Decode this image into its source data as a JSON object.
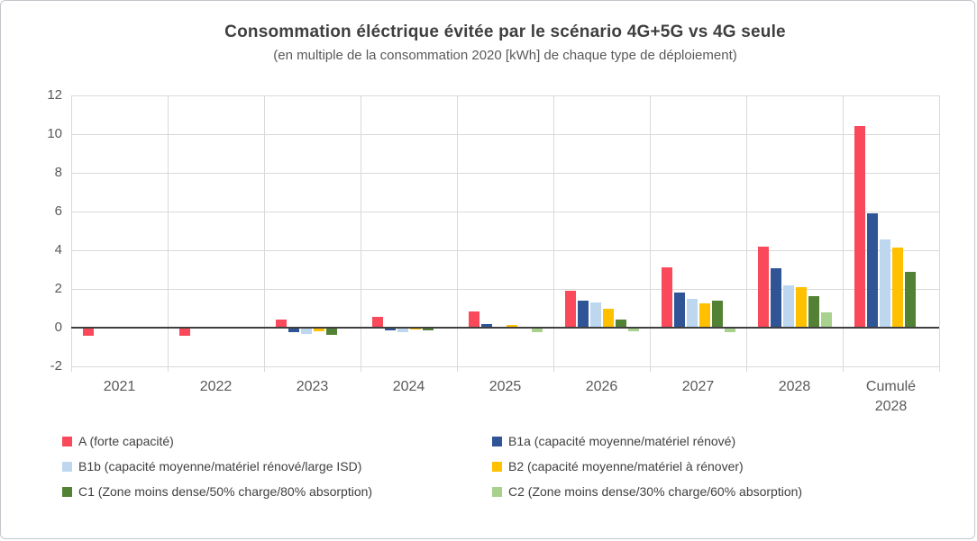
{
  "chart_data": {
    "type": "bar",
    "title": "Consommation éléctrique évitée par le scénario 4G+5G vs 4G seule",
    "subtitle": "(en multiple de la consommation 2020 [kWh] de chaque type de déploiement)",
    "categories": [
      "2021",
      "2022",
      "2023",
      "2024",
      "2025",
      "2026",
      "2027",
      "2028",
      "Cumulé\n2028"
    ],
    "series": [
      {
        "name": "A (forte capacité)",
        "short": "A",
        "color": "#F9495A",
        "values": [
          -0.4,
          -0.4,
          0.4,
          0.55,
          0.85,
          1.9,
          3.1,
          4.2,
          10.4
        ]
      },
      {
        "name": "B1a (capacité moyenne/matériel rénové)",
        "short": "B1a",
        "color": "#2F5597",
        "values": [
          0,
          0,
          -0.25,
          -0.15,
          0.2,
          1.4,
          1.8,
          3.05,
          5.9
        ]
      },
      {
        "name": "B1b (capacité moyenne/matériel rénové/large ISD)",
        "short": "B1b",
        "color": "#BDD7EE",
        "values": [
          0,
          0,
          -0.3,
          -0.25,
          0.05,
          1.3,
          1.5,
          2.2,
          4.55
        ]
      },
      {
        "name": "B2 (capacité moyenne/matériel à rénover)",
        "short": "B2",
        "color": "#FFC000",
        "values": [
          0,
          0,
          -0.2,
          -0.1,
          0.15,
          1.0,
          1.25,
          2.1,
          4.15
        ]
      },
      {
        "name": "C1 (Zone moins dense/50% charge/80% absorption)",
        "short": "C1",
        "color": "#548235",
        "values": [
          0,
          0,
          -0.35,
          -0.15,
          0.05,
          0.4,
          1.4,
          1.65,
          2.9
        ]
      },
      {
        "name": "C2 (Zone moins dense/30% charge/60% absorption)",
        "short": "C2",
        "color": "#A9D18E",
        "values": [
          0,
          0,
          0,
          0,
          -0.25,
          -0.2,
          -0.25,
          0.8,
          -0.05
        ]
      }
    ],
    "ylim": [
      -2,
      12
    ],
    "yticks": [
      12,
      10,
      8,
      6,
      4,
      2,
      0,
      -2
    ],
    "grid": true,
    "legend_position": "bottom",
    "legend_rows": [
      [
        0,
        1
      ],
      [
        2,
        3
      ],
      [
        4,
        5
      ]
    ],
    "legend_columns_x": [
      68,
      545
    ],
    "colors": {
      "grid": "#D9D9D9",
      "zero_axis": "#3F3F3F",
      "tick_text": "#595959",
      "title_text": "#3F3F3F"
    }
  }
}
